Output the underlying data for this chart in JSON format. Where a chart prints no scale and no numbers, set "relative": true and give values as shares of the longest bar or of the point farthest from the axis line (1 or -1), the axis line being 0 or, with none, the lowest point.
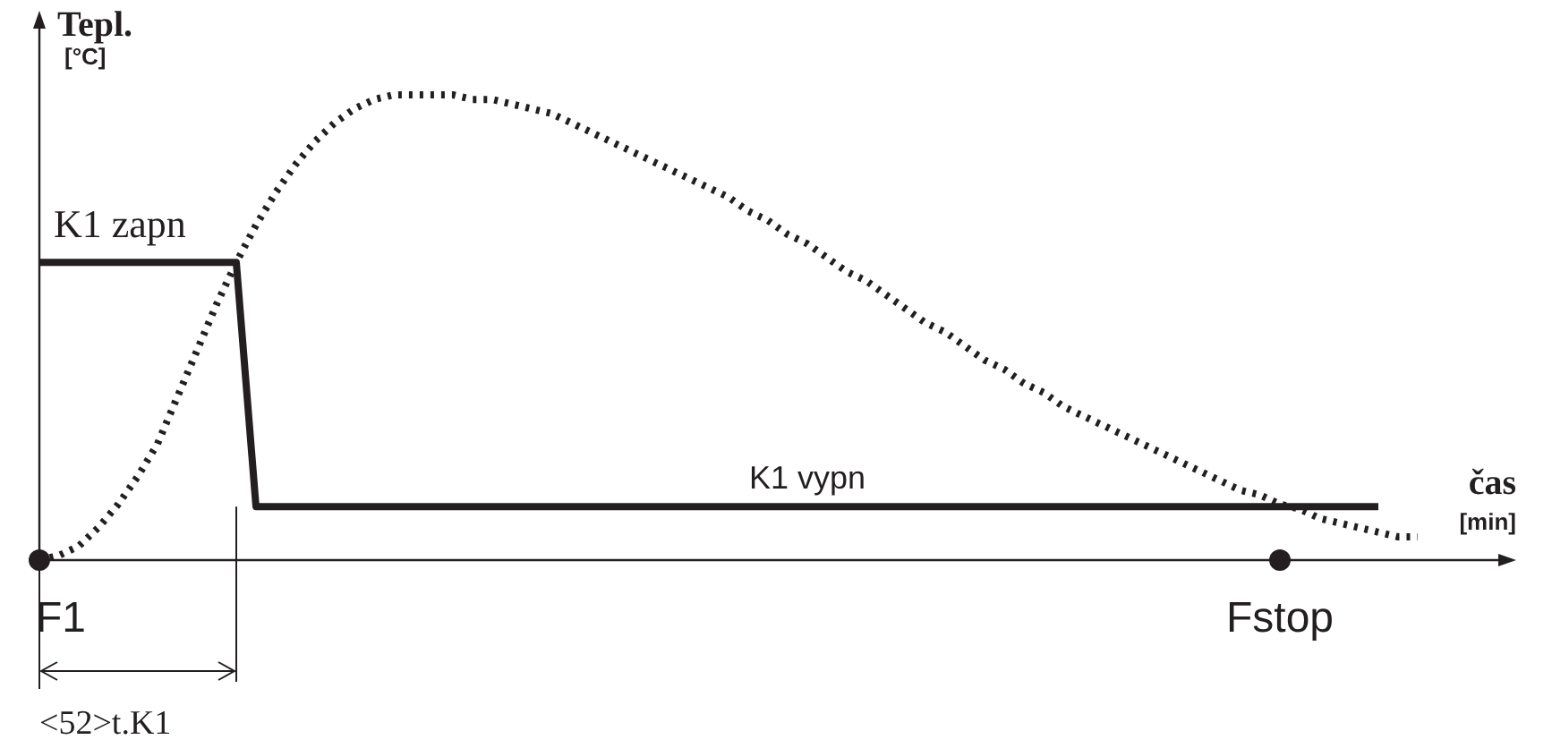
{
  "chart_data": {
    "type": "line",
    "relative": true,
    "xlabel": "čas [min]",
    "ylabel": "Tepl. [°C]",
    "categories": [
      null,
      null,
      null,
      null,
      null,
      null,
      null,
      null,
      null,
      null,
      null,
      null,
      null,
      null,
      null,
      null,
      null,
      null,
      null,
      null,
      null,
      null,
      null,
      null,
      null,
      null,
      null,
      null,
      null,
      null,
      null,
      null,
      null,
      null,
      null,
      null,
      null,
      null,
      null,
      null,
      null,
      null,
      null,
      null,
      null,
      null,
      null,
      null,
      null,
      null,
      null,
      null,
      null,
      null,
      null,
      null,
      null,
      null,
      null,
      null,
      null,
      null,
      null,
      null,
      null,
      null,
      null,
      null,
      null,
      null,
      null,
      null,
      null,
      null
    ],
    "series": [
      {
        "color": "#231f20",
        "line_style": "dotted",
        "values": [
          0,
          0.01,
          0.03,
          0.07,
          0.12,
          0.18,
          0.25,
          0.35,
          0.45,
          0.55,
          0.64,
          0.72,
          0.79,
          0.85,
          0.9,
          0.94,
          0.97,
          0.99,
          1,
          1,
          1,
          1,
          0.99,
          0.99,
          0.98,
          0.97,
          0.96,
          0.94,
          0.92,
          0.9,
          0.88,
          0.86,
          0.84,
          0.82,
          0.8,
          0.78,
          0.75,
          0.73,
          0.7,
          0.68,
          0.65,
          0.62,
          0.6,
          0.57,
          0.54,
          0.51,
          0.49,
          0.46,
          0.43,
          0.41,
          0.38,
          0.36,
          0.33,
          0.31,
          0.29,
          0.27,
          0.25,
          0.23,
          0.21,
          0.19,
          0.17,
          0.15,
          0.14,
          0.12,
          0.11,
          0.09,
          0.08,
          0.07,
          0.06,
          0.05,
          0.05,
          null,
          null,
          null
        ]
      },
      {
        "color": "#231f20",
        "line_style": "solid",
        "values": [
          0.64,
          0.64,
          0.64,
          0.64,
          0.64,
          0.64,
          0.64,
          0.64,
          0.64,
          0.64,
          0.64,
          0.115,
          0.115,
          0.115,
          0.115,
          0.115,
          0.115,
          0.115,
          0.115,
          0.115,
          0.115,
          0.115,
          0.115,
          0.115,
          0.115,
          0.115,
          0.115,
          0.115,
          0.115,
          0.115,
          0.115,
          0.115,
          0.115,
          0.115,
          0.115,
          0.115,
          0.115,
          0.115,
          0.115,
          0.115,
          0.115,
          0.115,
          0.115,
          0.115,
          0.115,
          0.115,
          0.115,
          0.115,
          0.115,
          0.115,
          0.115,
          0.115,
          0.115,
          0.115,
          0.115,
          0.115,
          0.115,
          0.115,
          0.115,
          0.115,
          0.115,
          0.115,
          0.115,
          0.115,
          0.115,
          0.115,
          0.115,
          0.115,
          0.115,
          null,
          null,
          null,
          null,
          null
        ]
      }
    ],
    "annotations": [
      "K1 zapn",
      "K1 vypn",
      {
        "text": "F1",
        "y": 0
      },
      {
        "text": "Fstop",
        "y": 0
      },
      "<52>t.K1"
    ]
  }
}
